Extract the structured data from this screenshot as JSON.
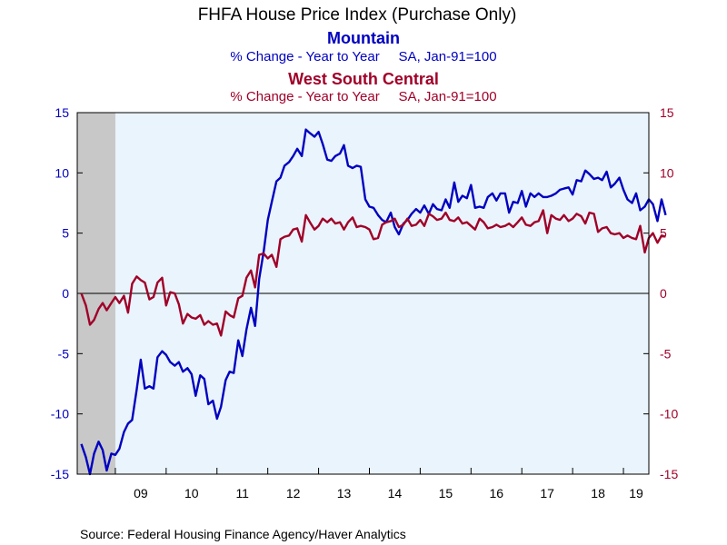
{
  "chart_data": {
    "type": "line",
    "title": "FHFA House Price Index (Purchase Only)",
    "x_tick_labels": [
      "09",
      "10",
      "11",
      "12",
      "13",
      "14",
      "15",
      "16",
      "17",
      "18",
      "19"
    ],
    "x_range": [
      2008.25,
      2019.5
    ],
    "ylim": [
      -15,
      15
    ],
    "y_ticks": [
      -15,
      -10,
      -5,
      0,
      5,
      10,
      15
    ],
    "y_tick_labels": [
      "-15",
      "-10",
      "-5",
      "0",
      "5",
      "10",
      "15"
    ],
    "recession_shading": [
      2008.25,
      2009.0
    ],
    "grid": false,
    "zero_line": true,
    "source": "Source:  Federal Housing Finance Agency/Haver Analytics",
    "colors": {
      "mountain": "#0000c0",
      "wsc": "#a00028",
      "plot_bg": "#eaf4fc",
      "recession": "#c8c8c8"
    },
    "series": [
      {
        "name": "Mountain",
        "subtitle": "% Change - Year to Year     SA, Jan-91=100",
        "axis": "left",
        "values": [
          [
            2008.33,
            -12.5
          ],
          [
            2008.42,
            -13.6
          ],
          [
            2008.5,
            -15.0
          ],
          [
            2008.58,
            -13.3
          ],
          [
            2008.67,
            -12.3
          ],
          [
            2008.75,
            -13.0
          ],
          [
            2008.83,
            -14.7
          ],
          [
            2008.92,
            -13.3
          ],
          [
            2009.0,
            -13.4
          ],
          [
            2009.08,
            -12.9
          ],
          [
            2009.17,
            -11.5
          ],
          [
            2009.25,
            -10.8
          ],
          [
            2009.33,
            -10.5
          ],
          [
            2009.42,
            -8.0
          ],
          [
            2009.5,
            -5.5
          ],
          [
            2009.58,
            -7.9
          ],
          [
            2009.67,
            -7.7
          ],
          [
            2009.75,
            -7.9
          ],
          [
            2009.83,
            -5.3
          ],
          [
            2009.92,
            -4.8
          ],
          [
            2010.0,
            -5.1
          ],
          [
            2010.08,
            -5.7
          ],
          [
            2010.17,
            -6.0
          ],
          [
            2010.25,
            -5.7
          ],
          [
            2010.33,
            -6.5
          ],
          [
            2010.42,
            -6.2
          ],
          [
            2010.5,
            -6.7
          ],
          [
            2010.58,
            -8.5
          ],
          [
            2010.67,
            -6.8
          ],
          [
            2010.75,
            -7.1
          ],
          [
            2010.83,
            -9.2
          ],
          [
            2010.92,
            -8.9
          ],
          [
            2011.0,
            -10.4
          ],
          [
            2011.08,
            -9.4
          ],
          [
            2011.17,
            -7.2
          ],
          [
            2011.25,
            -6.5
          ],
          [
            2011.33,
            -6.6
          ],
          [
            2011.42,
            -3.9
          ],
          [
            2011.5,
            -5.2
          ],
          [
            2011.58,
            -3.0
          ],
          [
            2011.67,
            -1.2
          ],
          [
            2011.75,
            -2.7
          ],
          [
            2011.83,
            1.2
          ],
          [
            2011.92,
            3.5
          ],
          [
            2012.0,
            6.1
          ],
          [
            2012.08,
            7.6
          ],
          [
            2012.17,
            9.3
          ],
          [
            2012.25,
            9.6
          ],
          [
            2012.33,
            10.6
          ],
          [
            2012.42,
            10.9
          ],
          [
            2012.5,
            11.4
          ],
          [
            2012.58,
            12.0
          ],
          [
            2012.67,
            11.4
          ],
          [
            2012.75,
            13.6
          ],
          [
            2012.83,
            13.3
          ],
          [
            2012.92,
            13.0
          ],
          [
            2013.0,
            13.4
          ],
          [
            2013.08,
            12.4
          ],
          [
            2013.17,
            11.1
          ],
          [
            2013.25,
            11.0
          ],
          [
            2013.33,
            11.4
          ],
          [
            2013.42,
            11.6
          ],
          [
            2013.5,
            12.3
          ],
          [
            2013.58,
            10.6
          ],
          [
            2013.67,
            10.4
          ],
          [
            2013.75,
            10.6
          ],
          [
            2013.83,
            10.5
          ],
          [
            2013.92,
            7.8
          ],
          [
            2014.0,
            7.2
          ],
          [
            2014.08,
            7.1
          ],
          [
            2014.17,
            6.5
          ],
          [
            2014.25,
            6.1
          ],
          [
            2014.33,
            5.9
          ],
          [
            2014.42,
            6.7
          ],
          [
            2014.5,
            5.5
          ],
          [
            2014.58,
            4.9
          ],
          [
            2014.67,
            5.8
          ],
          [
            2014.75,
            6.1
          ],
          [
            2014.83,
            6.6
          ],
          [
            2014.92,
            7.0
          ],
          [
            2015.0,
            6.7
          ],
          [
            2015.08,
            7.3
          ],
          [
            2015.17,
            6.6
          ],
          [
            2015.25,
            7.4
          ],
          [
            2015.33,
            7.0
          ],
          [
            2015.42,
            6.9
          ],
          [
            2015.5,
            7.8
          ],
          [
            2015.58,
            7.1
          ],
          [
            2015.67,
            9.2
          ],
          [
            2015.75,
            7.6
          ],
          [
            2015.83,
            8.1
          ],
          [
            2015.92,
            7.9
          ],
          [
            2016.0,
            9.0
          ],
          [
            2016.08,
            7.1
          ],
          [
            2016.17,
            7.2
          ],
          [
            2016.25,
            7.1
          ],
          [
            2016.33,
            8.0
          ],
          [
            2016.42,
            8.3
          ],
          [
            2016.5,
            7.7
          ],
          [
            2016.58,
            8.3
          ],
          [
            2016.67,
            8.3
          ],
          [
            2016.75,
            6.7
          ],
          [
            2016.83,
            7.6
          ],
          [
            2016.92,
            7.5
          ],
          [
            2017.0,
            8.5
          ],
          [
            2017.08,
            7.2
          ],
          [
            2017.17,
            8.3
          ],
          [
            2017.25,
            8.0
          ],
          [
            2017.33,
            8.3
          ],
          [
            2017.42,
            8.0
          ],
          [
            2017.5,
            8.0
          ],
          [
            2017.58,
            8.1
          ],
          [
            2017.67,
            8.3
          ],
          [
            2017.75,
            8.6
          ],
          [
            2017.83,
            8.7
          ],
          [
            2017.92,
            8.8
          ],
          [
            2018.0,
            8.2
          ],
          [
            2018.08,
            9.4
          ],
          [
            2018.17,
            9.3
          ],
          [
            2018.25,
            10.2
          ],
          [
            2018.33,
            9.9
          ],
          [
            2018.42,
            9.5
          ],
          [
            2018.5,
            9.6
          ],
          [
            2018.58,
            9.4
          ],
          [
            2018.67,
            10.1
          ],
          [
            2018.75,
            8.8
          ],
          [
            2018.83,
            9.1
          ],
          [
            2018.92,
            9.6
          ],
          [
            2019.0,
            8.6
          ],
          [
            2019.08,
            7.8
          ],
          [
            2019.17,
            7.5
          ],
          [
            2019.25,
            8.3
          ],
          [
            2019.33,
            6.9
          ],
          [
            2019.42,
            7.2
          ],
          [
            2019.5,
            7.8
          ],
          [
            2019.58,
            7.4
          ],
          [
            2019.67,
            6.0
          ],
          [
            2019.75,
            7.8
          ],
          [
            2019.83,
            6.5
          ]
        ]
      },
      {
        "name": "West South Central",
        "subtitle": "% Change - Year to Year     SA, Jan-91=100",
        "axis": "right",
        "values": [
          [
            2008.33,
            0.0
          ],
          [
            2008.42,
            -1.0
          ],
          [
            2008.5,
            -2.6
          ],
          [
            2008.58,
            -2.2
          ],
          [
            2008.67,
            -1.3
          ],
          [
            2008.75,
            -0.8
          ],
          [
            2008.83,
            -1.4
          ],
          [
            2008.92,
            -0.8
          ],
          [
            2009.0,
            -0.3
          ],
          [
            2009.08,
            -0.8
          ],
          [
            2009.17,
            -0.2
          ],
          [
            2009.25,
            -1.6
          ],
          [
            2009.33,
            0.8
          ],
          [
            2009.42,
            1.4
          ],
          [
            2009.5,
            1.1
          ],
          [
            2009.58,
            0.9
          ],
          [
            2009.67,
            -0.5
          ],
          [
            2009.75,
            -0.3
          ],
          [
            2009.83,
            0.9
          ],
          [
            2009.92,
            1.3
          ],
          [
            2010.0,
            -1.0
          ],
          [
            2010.08,
            0.1
          ],
          [
            2010.17,
            0.0
          ],
          [
            2010.25,
            -0.9
          ],
          [
            2010.33,
            -2.5
          ],
          [
            2010.42,
            -1.7
          ],
          [
            2010.5,
            -2.0
          ],
          [
            2010.58,
            -2.1
          ],
          [
            2010.67,
            -1.8
          ],
          [
            2010.75,
            -2.6
          ],
          [
            2010.83,
            -2.3
          ],
          [
            2010.92,
            -2.6
          ],
          [
            2011.0,
            -2.5
          ],
          [
            2011.08,
            -3.5
          ],
          [
            2011.17,
            -1.5
          ],
          [
            2011.25,
            -1.8
          ],
          [
            2011.33,
            -2.0
          ],
          [
            2011.42,
            -0.4
          ],
          [
            2011.5,
            -0.2
          ],
          [
            2011.58,
            1.3
          ],
          [
            2011.67,
            1.9
          ],
          [
            2011.75,
            0.5
          ],
          [
            2011.83,
            3.2
          ],
          [
            2011.92,
            3.3
          ],
          [
            2012.0,
            2.9
          ],
          [
            2012.08,
            3.2
          ],
          [
            2012.17,
            2.2
          ],
          [
            2012.25,
            4.5
          ],
          [
            2012.33,
            4.7
          ],
          [
            2012.42,
            4.8
          ],
          [
            2012.5,
            5.3
          ],
          [
            2012.58,
            5.4
          ],
          [
            2012.67,
            4.3
          ],
          [
            2012.75,
            6.5
          ],
          [
            2012.83,
            5.9
          ],
          [
            2012.92,
            5.3
          ],
          [
            2013.0,
            5.6
          ],
          [
            2013.08,
            6.2
          ],
          [
            2013.17,
            5.9
          ],
          [
            2013.25,
            6.2
          ],
          [
            2013.33,
            5.8
          ],
          [
            2013.42,
            5.9
          ],
          [
            2013.5,
            5.3
          ],
          [
            2013.58,
            5.9
          ],
          [
            2013.67,
            6.3
          ],
          [
            2013.75,
            5.5
          ],
          [
            2013.83,
            5.6
          ],
          [
            2013.92,
            5.5
          ],
          [
            2014.0,
            5.3
          ],
          [
            2014.08,
            4.5
          ],
          [
            2014.17,
            4.6
          ],
          [
            2014.25,
            5.7
          ],
          [
            2014.33,
            5.9
          ],
          [
            2014.42,
            6.0
          ],
          [
            2014.5,
            6.2
          ],
          [
            2014.58,
            5.5
          ],
          [
            2014.67,
            5.7
          ],
          [
            2014.75,
            6.2
          ],
          [
            2014.83,
            5.6
          ],
          [
            2014.92,
            5.7
          ],
          [
            2015.0,
            6.1
          ],
          [
            2015.08,
            5.6
          ],
          [
            2015.17,
            6.6
          ],
          [
            2015.25,
            6.4
          ],
          [
            2015.33,
            6.1
          ],
          [
            2015.42,
            6.2
          ],
          [
            2015.5,
            6.7
          ],
          [
            2015.58,
            6.1
          ],
          [
            2015.67,
            6.0
          ],
          [
            2015.75,
            6.3
          ],
          [
            2015.83,
            5.8
          ],
          [
            2015.92,
            5.9
          ],
          [
            2016.0,
            5.6
          ],
          [
            2016.08,
            5.3
          ],
          [
            2016.17,
            6.2
          ],
          [
            2016.25,
            5.9
          ],
          [
            2016.33,
            5.4
          ],
          [
            2016.42,
            5.5
          ],
          [
            2016.5,
            5.7
          ],
          [
            2016.58,
            5.5
          ],
          [
            2016.67,
            5.6
          ],
          [
            2016.75,
            5.8
          ],
          [
            2016.83,
            5.5
          ],
          [
            2016.92,
            5.9
          ],
          [
            2017.0,
            6.3
          ],
          [
            2017.08,
            5.7
          ],
          [
            2017.17,
            5.6
          ],
          [
            2017.25,
            5.9
          ],
          [
            2017.33,
            6.0
          ],
          [
            2017.42,
            6.9
          ],
          [
            2017.5,
            5.0
          ],
          [
            2017.58,
            6.5
          ],
          [
            2017.67,
            6.2
          ],
          [
            2017.75,
            6.1
          ],
          [
            2017.83,
            6.5
          ],
          [
            2017.92,
            6.0
          ],
          [
            2018.0,
            6.2
          ],
          [
            2018.08,
            6.6
          ],
          [
            2018.17,
            6.4
          ],
          [
            2018.25,
            5.8
          ],
          [
            2018.33,
            6.7
          ],
          [
            2018.42,
            6.6
          ],
          [
            2018.5,
            5.1
          ],
          [
            2018.58,
            5.4
          ],
          [
            2018.67,
            5.5
          ],
          [
            2018.75,
            5.0
          ],
          [
            2018.83,
            4.9
          ],
          [
            2018.92,
            5.0
          ],
          [
            2019.0,
            4.6
          ],
          [
            2019.08,
            4.8
          ],
          [
            2019.17,
            4.6
          ],
          [
            2019.25,
            4.5
          ],
          [
            2019.33,
            5.6
          ],
          [
            2019.42,
            3.4
          ],
          [
            2019.5,
            4.6
          ],
          [
            2019.58,
            5.0
          ],
          [
            2019.67,
            4.2
          ],
          [
            2019.75,
            4.8
          ],
          [
            2019.83,
            4.7
          ]
        ]
      }
    ]
  }
}
